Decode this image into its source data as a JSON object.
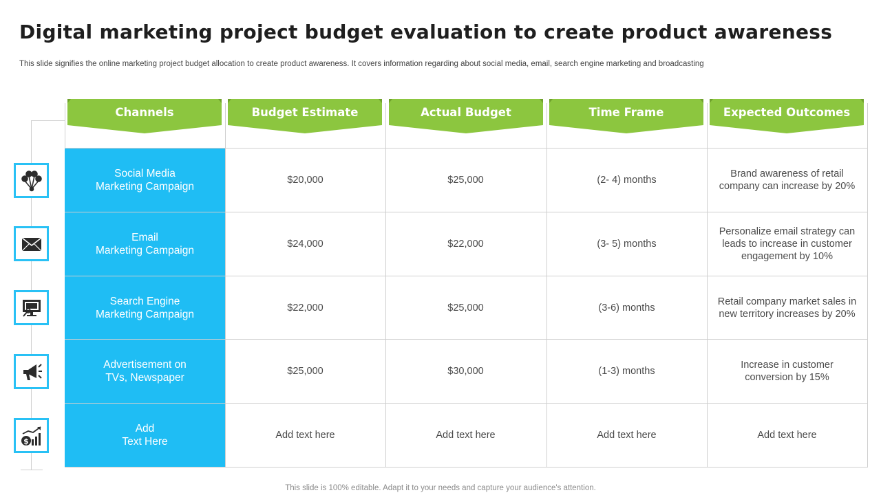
{
  "title": "Digital marketing project budget evaluation to create product awareness",
  "subtitle": "This slide signifies the online marketing project budget allocation to create product awareness. It covers information regarding  about social media, email, search engine marketing and broadcasting",
  "footer": "This slide is 100% editable. Adapt it to your needs and capture your audience's attention.",
  "colors": {
    "header_green": "#8cc63f",
    "channel_blue": "#1fbdf4",
    "border": "#cfcfcf"
  },
  "table": {
    "headers": [
      "Channels",
      "Budget Estimate",
      "Actual Budget",
      "Time Frame",
      "Expected Outcomes"
    ],
    "rows": [
      {
        "icon": "social-network-icon",
        "channel": "Social Media\nMarketing Campaign",
        "budget_estimate": "$20,000",
        "actual_budget": "$25,000",
        "time_frame": "(2- 4) months",
        "outcome": "Brand awareness of retail\ncompany can increase by 20%"
      },
      {
        "icon": "envelope-icon",
        "channel": "Email\nMarketing Campaign",
        "budget_estimate": "$24,000",
        "actual_budget": "$22,000",
        "time_frame": "(3- 5) months",
        "outcome": "Personalize email strategy can\nleads to increase in customer\nengagement by 10%"
      },
      {
        "icon": "monitor-search-icon",
        "channel": "Search Engine\nMarketing Campaign",
        "budget_estimate": "$22,000",
        "actual_budget": "$25,000",
        "time_frame": "(3-6) months",
        "outcome": "Retail company market sales in\nnew territory increases by 20%"
      },
      {
        "icon": "megaphone-icon",
        "channel": "Advertisement on\nTVs, Newspaper",
        "budget_estimate": "$25,000",
        "actual_budget": "$30,000",
        "time_frame": "(1-3) months",
        "outcome": "Increase in customer\nconversion by 15%"
      },
      {
        "icon": "money-growth-chart-icon",
        "channel": "Add\nText Here",
        "budget_estimate": "Add text here",
        "actual_budget": "Add text here",
        "time_frame": "Add text here",
        "outcome": "Add text here"
      }
    ]
  }
}
